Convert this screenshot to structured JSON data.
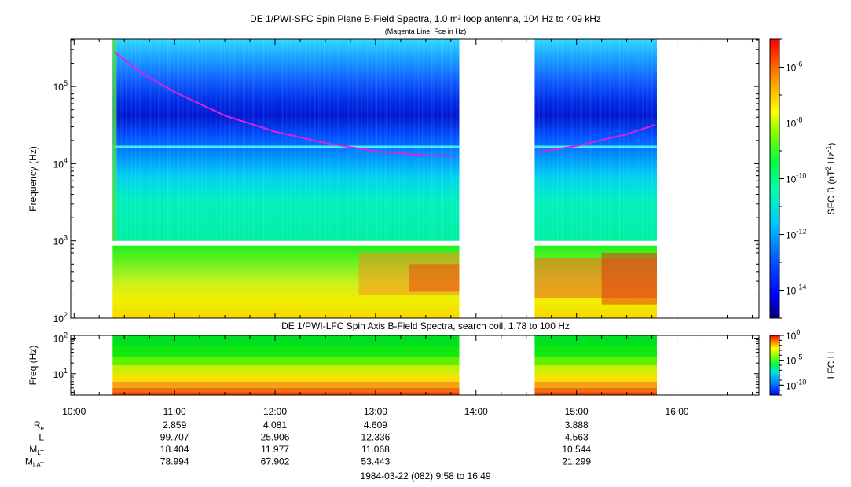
{
  "chart_data": [
    {
      "type": "heatmap",
      "title": "DE 1/PWI-SFC  Spin Plane B-Field Spectra, 1.0 m² loop antenna, 104 Hz to 409 kHz",
      "subtitle": "(Magenta Line: Fce in Hz)",
      "ylabel": "Frequency (Hz)",
      "yscale": "log",
      "ylim": [
        100,
        409000
      ],
      "y_ticks": [
        {
          "value": 100,
          "base": "10",
          "exp": "2"
        },
        {
          "value": 1000,
          "base": "10",
          "exp": "3"
        },
        {
          "value": 10000,
          "base": "10",
          "exp": "4"
        },
        {
          "value": 100000,
          "base": "10",
          "exp": "5"
        }
      ],
      "colorbar": {
        "label": "SFC B (nT",
        "label_sup": "2",
        "label_mid": " Hz",
        "label_sup2": "-1",
        "label_end": ")",
        "scale": "log",
        "range": [
          1e-15,
          1e-05
        ],
        "ticks": [
          {
            "value": 1e-06,
            "base": "10",
            "exp": "-6"
          },
          {
            "value": 1e-08,
            "base": "10",
            "exp": "-8"
          },
          {
            "value": 1e-10,
            "base": "10",
            "exp": "-10"
          },
          {
            "value": 1e-12,
            "base": "10",
            "exp": "-12"
          },
          {
            "value": 1e-14,
            "base": "10",
            "exp": "-14"
          }
        ]
      },
      "data_intervals": [
        [
          "10:23",
          "13:50"
        ],
        [
          "14:35",
          "15:48"
        ]
      ],
      "fce_line": {
        "color": "#e020e0",
        "points": [
          {
            "t": "10:24",
            "f": 280000
          },
          {
            "t": "10:40",
            "f": 150000
          },
          {
            "t": "11:00",
            "f": 85000
          },
          {
            "t": "11:30",
            "f": 42000
          },
          {
            "t": "12:00",
            "f": 26000
          },
          {
            "t": "12:30",
            "f": 18500
          },
          {
            "t": "13:00",
            "f": 14500
          },
          {
            "t": "13:30",
            "f": 12800
          },
          {
            "t": "13:48",
            "f": 12500
          },
          {
            "t": "14:36",
            "f": 14000
          },
          {
            "t": "15:00",
            "f": 17000
          },
          {
            "t": "15:30",
            "f": 24000
          },
          {
            "t": "15:47",
            "f": 32000
          }
        ]
      }
    },
    {
      "type": "heatmap",
      "title": "DE 1/PWI-LFC  Spin Axis B-Field Spectra, search coil, 1.78 to 100 Hz",
      "ylabel": "Freq (Hz)",
      "yscale": "log",
      "ylim": [
        2.5,
        120
      ],
      "y_ticks": [
        {
          "value": 10,
          "base": "10",
          "exp": "1"
        },
        {
          "value": 100,
          "base": "10",
          "exp": "2"
        }
      ],
      "colorbar": {
        "label": "LFC H",
        "scale": "log",
        "range": [
          1e-12,
          1
        ],
        "ticks": [
          {
            "value": 1,
            "base": "10",
            "exp": "0"
          },
          {
            "value": 1e-05,
            "base": "10",
            "exp": "-5"
          },
          {
            "value": 1e-10,
            "base": "10",
            "exp": "-10"
          }
        ]
      },
      "data_intervals": [
        [
          "10:23",
          "13:50"
        ],
        [
          "14:35",
          "15:48"
        ]
      ]
    }
  ],
  "time_axis": {
    "ticks": [
      "10:00",
      "11:00",
      "12:00",
      "13:00",
      "14:00",
      "15:00",
      "16:00"
    ],
    "range": [
      "9:58",
      "16:49"
    ]
  },
  "ephemeris": {
    "rows": [
      {
        "label": "R",
        "sub": "e",
        "values": [
          "2.859",
          "4.081",
          "4.609",
          "",
          "3.888"
        ]
      },
      {
        "label": "L",
        "sub": "",
        "values": [
          "99.707",
          "25.906",
          "12.336",
          "",
          "4.563"
        ]
      },
      {
        "label": "M",
        "sub": "LT",
        "values": [
          "18.404",
          "11.977",
          "11.068",
          "",
          "10.544"
        ]
      },
      {
        "label": "M",
        "sub": "LAT",
        "values": [
          "78.994",
          "67.902",
          "53.443",
          "",
          "21.299"
        ]
      }
    ]
  },
  "date_label": "1984-03-22 (082) 9:58 to 16:49"
}
